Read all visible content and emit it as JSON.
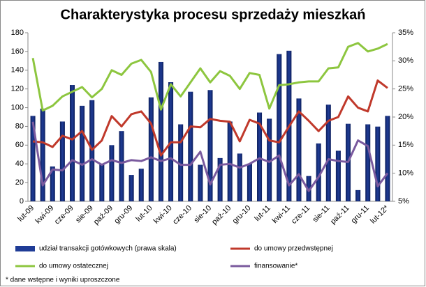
{
  "chart_data": {
    "type": "bar-line",
    "title": "Charakterystyka procesu sprzedaży mieszkań",
    "categories": [
      "lut-09",
      null,
      "kwi-09",
      null,
      "cze-09",
      null,
      "sie-09",
      null,
      "paź-09",
      null,
      "gru-09",
      null,
      "lut-10",
      null,
      "kwi-10",
      null,
      "cze-10",
      null,
      "sie-10",
      null,
      "paź-10",
      null,
      "gru-10",
      null,
      "lut-11",
      null,
      "kwi-11",
      null,
      "cze-11",
      null,
      "sie-11",
      null,
      "paź-11",
      null,
      "gru-11",
      null,
      "lut-12*"
    ],
    "series": [
      {
        "name": "udział transakcji gotówkowych (prawa skala)",
        "type": "bar",
        "axis": "y2",
        "color": "#1f3c96",
        "values": [
          20.2,
          21.5,
          11.2,
          19.2,
          25.7,
          22,
          23,
          11.7,
          15,
          17.5,
          9.7,
          10.8,
          23.5,
          29.8,
          26.2,
          18.7,
          24.5,
          11.5,
          24.8,
          12.7,
          19.2,
          13.5,
          11.7,
          20.8,
          19.7,
          31.2,
          31.8,
          23.3,
          9.5,
          15.3,
          22.2,
          14,
          18.8,
          7,
          18.7,
          18.3,
          20.2
        ]
      },
      {
        "name": "do umowy przedwstępnej",
        "type": "line",
        "color": "#c0392b",
        "values": [
          64,
          63,
          58,
          70,
          66,
          75,
          55,
          65,
          91,
          80,
          93,
          96,
          83,
          49,
          63,
          63,
          80,
          79,
          88,
          86,
          85,
          64,
          87,
          83,
          65,
          63,
          80,
          96,
          86,
          75,
          86,
          90,
          112,
          100,
          96,
          129,
          121
        ]
      },
      {
        "name": "do umowy ostatecznej",
        "type": "line",
        "color": "#8dc63f",
        "values": [
          153,
          97,
          102,
          112,
          117,
          122,
          111,
          120,
          140,
          135,
          147,
          151,
          138,
          98,
          125,
          112,
          127,
          142,
          127,
          139,
          134,
          120,
          137,
          135,
          99,
          124,
          125,
          127,
          128,
          128,
          142,
          143,
          165,
          169,
          160,
          163,
          168
        ]
      },
      {
        "name": "finansowanie*",
        "type": "line",
        "color": "#7a5a9e",
        "values": [
          85,
          17,
          34,
          33,
          44,
          39,
          45,
          39,
          44,
          41,
          44,
          43,
          47,
          43,
          46,
          39,
          39,
          53,
          18,
          39,
          40,
          36,
          40,
          46,
          42,
          49,
          17,
          29,
          11,
          26,
          45,
          43,
          42,
          65,
          59,
          16,
          30
        ]
      }
    ],
    "ylim": [
      0,
      180
    ],
    "yticks": [
      0,
      20,
      40,
      60,
      80,
      100,
      120,
      140,
      160,
      180
    ],
    "y2lim": [
      5,
      35
    ],
    "y2ticks": [
      {
        "value": 5,
        "label": "5%"
      },
      {
        "value": 10,
        "label": "10%"
      },
      {
        "value": 15,
        "label": "15%"
      },
      {
        "value": 20,
        "label": "20%"
      },
      {
        "value": 25,
        "label": "25%"
      },
      {
        "value": 30,
        "label": "30%"
      },
      {
        "value": 35,
        "label": "35%"
      }
    ],
    "footnote": "* dane wstępne i wyniki uproszczone"
  }
}
